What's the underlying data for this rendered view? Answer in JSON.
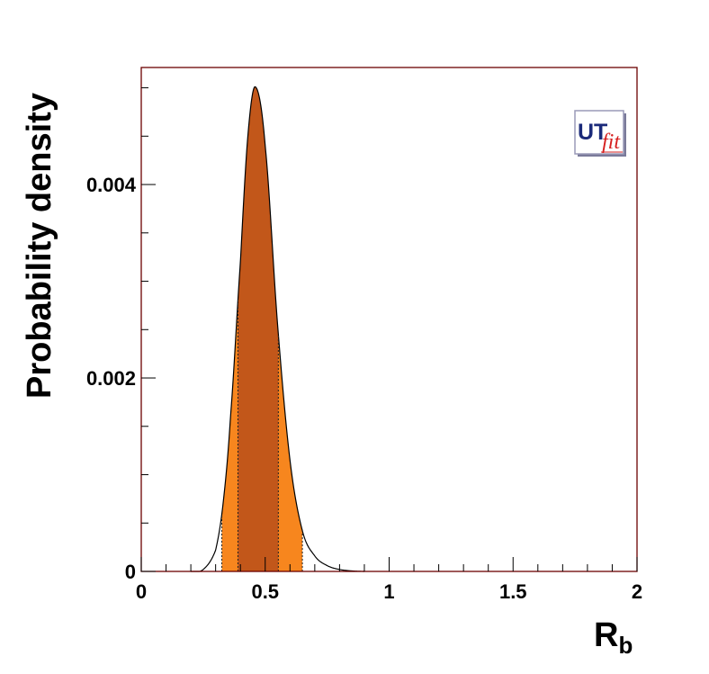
{
  "chart_data": {
    "type": "area",
    "title": "",
    "xlabel": "R",
    "xlabel_subscript": "b",
    "ylabel": "Probability density",
    "xlim": [
      0,
      2
    ],
    "ylim": [
      0,
      0.00521
    ],
    "x_ticks": [
      {
        "value": 0,
        "label": "0"
      },
      {
        "value": 0.5,
        "label": "0.5"
      },
      {
        "value": 1,
        "label": "1"
      },
      {
        "value": 1.5,
        "label": "1.5"
      },
      {
        "value": 2,
        "label": "2"
      }
    ],
    "y_ticks": [
      {
        "value": 0,
        "label": "0"
      },
      {
        "value": 0.002,
        "label": "0.002"
      },
      {
        "value": 0.004,
        "label": "0.004"
      }
    ],
    "grid": false,
    "series": [
      {
        "x": [
          0.2,
          0.25,
          0.3,
          0.33,
          0.36,
          0.4,
          0.43,
          0.46,
          0.5,
          0.55,
          0.6,
          0.65,
          0.7,
          0.75,
          0.8,
          0.85,
          0.9
        ],
        "y": [
          0.0,
          2e-05,
          0.00022,
          0.0007,
          0.0016,
          0.0032,
          0.0045,
          0.00501,
          0.0044,
          0.00255,
          0.00115,
          0.00042,
          0.00016,
          6e-05,
          2e-05,
          5e-06,
          0.0
        ]
      }
    ],
    "intervals": [
      {
        "from": 0.325,
        "to": 0.65,
        "color": "#f7861e"
      },
      {
        "from": 0.39,
        "to": 0.553,
        "color": "#c2571a"
      }
    ],
    "colors": {
      "frame": "#6b0000",
      "curve": "#000000"
    },
    "logo": "UTfit"
  }
}
